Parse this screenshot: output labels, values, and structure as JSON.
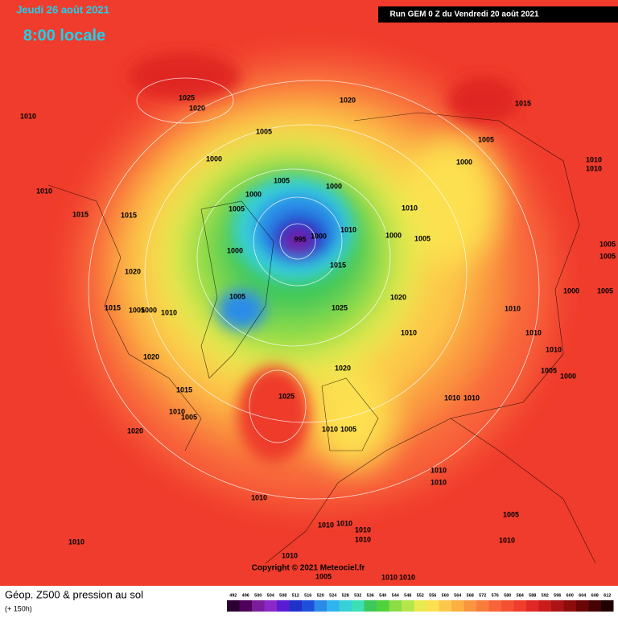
{
  "header": {
    "valid_date": "Jeudi 26 août 2021",
    "local_time": "8:00 locale",
    "run": "Run GEM 0 Z du Vendredi 20 août 2021"
  },
  "map": {
    "copyright": "Copyright © 2021 Meteociel.fr",
    "isobar_labels": [
      1025,
      1020,
      1010,
      1020,
      1015,
      1005,
      1005,
      1000,
      1000,
      1010,
      1010,
      1005,
      1000,
      1010,
      1000,
      1005,
      1010,
      1015,
      1015,
      995,
      1000,
      1010,
      1000,
      1005,
      1005,
      1005,
      1000,
      1015,
      1020,
      1000,
      1005,
      1005,
      1020,
      1015,
      1005,
      1000,
      1010,
      1025,
      1010,
      1010,
      1010,
      1010,
      1020,
      1020,
      1005,
      1000,
      1015,
      1025,
      1010,
      1010,
      1010,
      1005,
      1020,
      1010,
      1005,
      1010,
      1010,
      1010,
      1005,
      1010,
      1010,
      1010,
      1010,
      1010,
      1010,
      1010,
      1005,
      1010,
      1010
    ]
  },
  "legend": {
    "title": "Géop. Z500 & pression au sol",
    "lead_time": "(+ 150h)",
    "scale_values": [
      492,
      496,
      500,
      504,
      508,
      512,
      516,
      520,
      524,
      528,
      532,
      536,
      540,
      544,
      548,
      552,
      556,
      560,
      564,
      568,
      572,
      576,
      580,
      584,
      588,
      592,
      596,
      600,
      604,
      608,
      612
    ],
    "colors": [
      "#2a0030",
      "#50005a",
      "#7a1c9c",
      "#8c28c8",
      "#5a1cd2",
      "#2030c8",
      "#1e50dc",
      "#2a8ce8",
      "#30b4f0",
      "#38d0d8",
      "#3ce0b4",
      "#3cc85a",
      "#50d23c",
      "#8cdc46",
      "#b4e64a",
      "#e8ea50",
      "#fde050",
      "#fdc84a",
      "#fcb042",
      "#fa9640",
      "#f87c3c",
      "#f8643a",
      "#f45032",
      "#f03c2c",
      "#e02824",
      "#c81c1c",
      "#aa1414",
      "#8c0c0c",
      "#6a0606",
      "#460202",
      "#200000"
    ]
  }
}
